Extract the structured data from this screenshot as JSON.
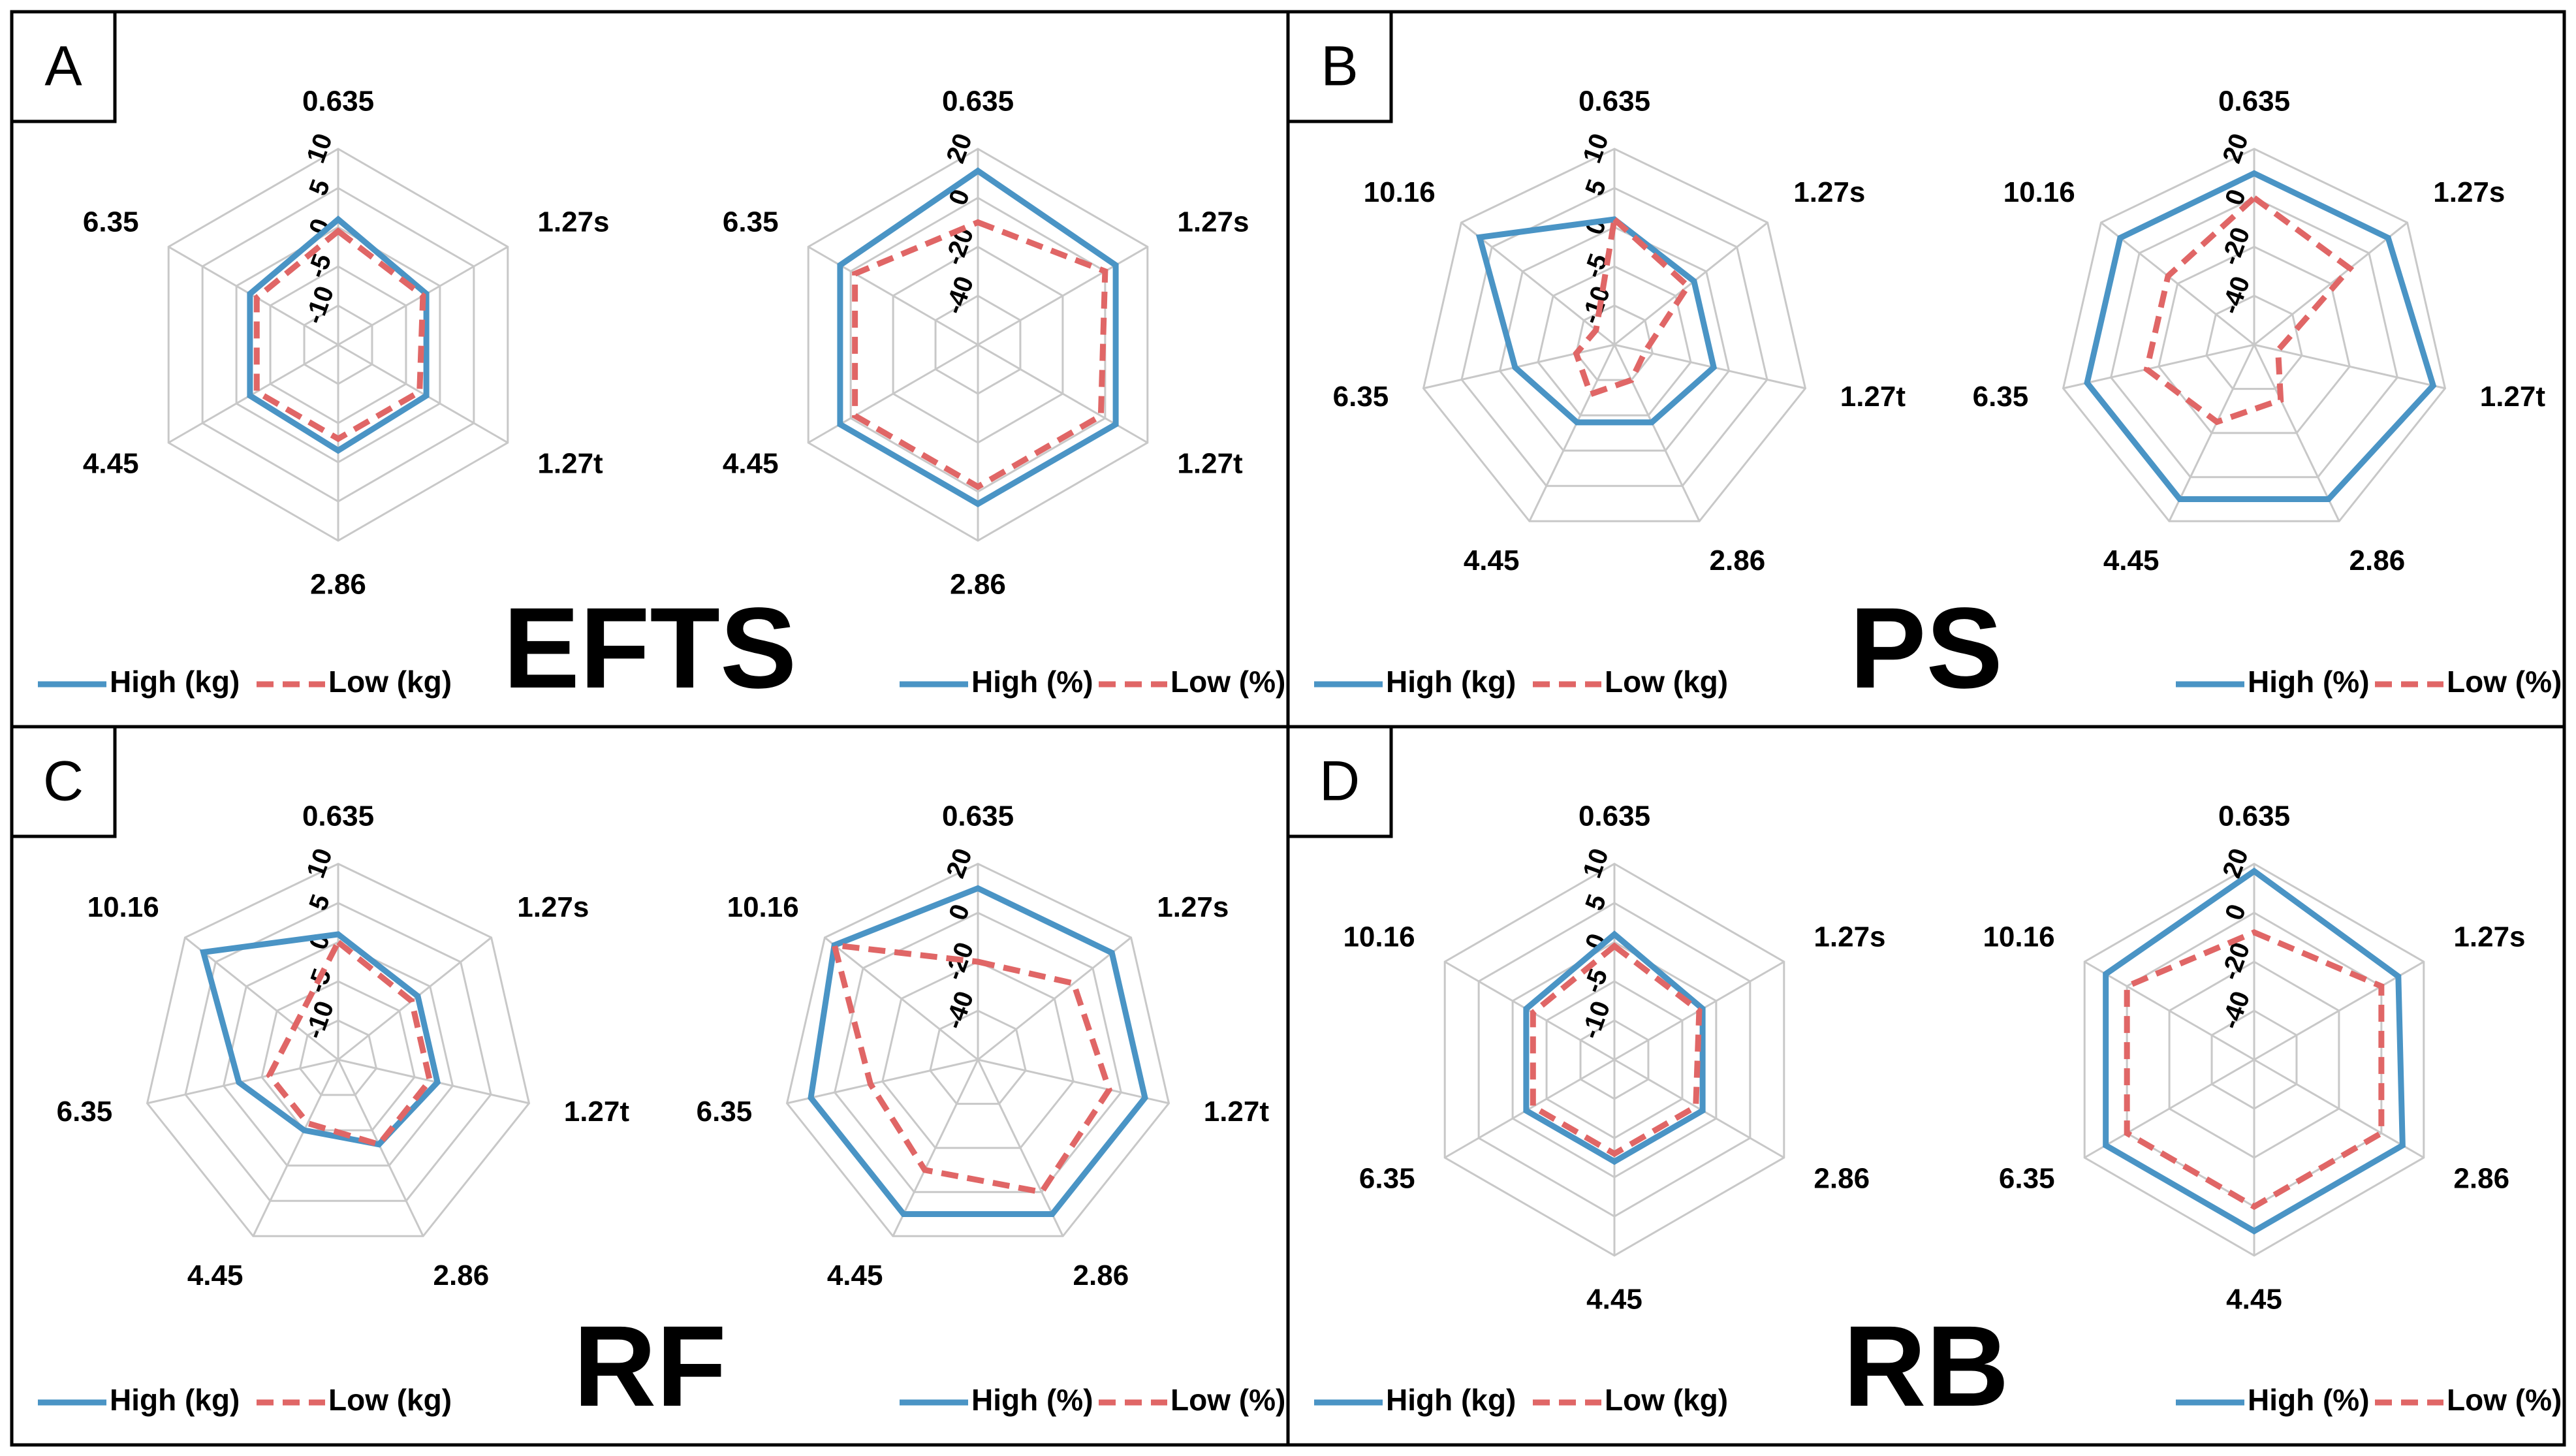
{
  "colors": {
    "high": "#4a94c5",
    "low": "#e06666",
    "grid": "#c8c8c8",
    "border": "#000000"
  },
  "chart_data": [
    {
      "panel": "A",
      "title": "EFTS",
      "type": "radar",
      "axes": [
        "0.635",
        "1.27s",
        "1.27t",
        "2.86",
        "4.45",
        "6.35"
      ],
      "charts": [
        {
          "ticks": [
            "10",
            "5",
            "0",
            "-5",
            "-10"
          ],
          "range": [
            -15,
            10
          ],
          "series": [
            {
              "name": "High (kg)",
              "values": [
                1,
                -2,
                -2,
                -1.5,
                -2,
                -2
              ]
            },
            {
              "name": "Low (kg)",
              "values": [
                -0.5,
                -2.5,
                -3,
                -3,
                -3,
                -3
              ]
            }
          ]
        },
        {
          "ticks": [
            "20",
            "0",
            "-20",
            "-40"
          ],
          "range": [
            -60,
            20
          ],
          "series": [
            {
              "name": "High (%)",
              "values": [
                11,
                5,
                5,
                5,
                5,
                5
              ]
            },
            {
              "name": "Low (%)",
              "values": [
                -10,
                0,
                -2,
                -2,
                -2,
                -2
              ]
            }
          ]
        }
      ]
    },
    {
      "panel": "B",
      "title": "PS",
      "type": "radar",
      "axes": [
        "0.635",
        "1.27s",
        "1.27t",
        "2.86",
        "4.45",
        "6.35",
        "10.16"
      ],
      "charts": [
        {
          "ticks": [
            "10",
            "5",
            "0",
            "-5",
            "-10"
          ],
          "range": [
            -15,
            10
          ],
          "series": [
            {
              "name": "High (kg)",
              "values": [
                1,
                -2,
                -2,
                -4,
                -4,
                -2,
                7
              ]
            },
            {
              "name": "Low (kg)",
              "values": [
                1,
                -3,
                -11,
                -10,
                -8,
                -10,
                -12
              ]
            }
          ]
        },
        {
          "ticks": [
            "20",
            "0",
            "-20",
            "-40"
          ],
          "range": [
            -60,
            20
          ],
          "series": [
            {
              "name": "High (%)",
              "values": [
                10,
                10,
                15,
                10,
                10,
                10,
                10
              ]
            },
            {
              "name": "Low (%)",
              "values": [
                0,
                -10,
                -50,
                -35,
                -25,
                -15,
                -15
              ]
            }
          ]
        }
      ]
    },
    {
      "panel": "C",
      "title": "RF",
      "type": "radar",
      "axes": [
        "0.635",
        "1.27s",
        "1.27t",
        "2.86",
        "4.45",
        "6.35",
        "10.16"
      ],
      "charts": [
        {
          "ticks": [
            "10",
            "5",
            "0",
            "-5",
            "-10"
          ],
          "range": [
            -15,
            10
          ],
          "series": [
            {
              "name": "High (kg)",
              "values": [
                1,
                -2,
                -2,
                -3,
                -5,
                -2,
                7
              ]
            },
            {
              "name": "Low (kg)",
              "values": [
                0,
                -3,
                -3,
                -3,
                -6,
                -6,
                -8
              ]
            }
          ]
        },
        {
          "ticks": [
            "20",
            "0",
            "-20",
            "-40"
          ],
          "range": [
            -60,
            20
          ],
          "series": [
            {
              "name": "High (%)",
              "values": [
                10,
                10,
                10,
                10,
                10,
                10,
                15
              ]
            },
            {
              "name": "Low (%)",
              "values": [
                -20,
                -10,
                -5,
                0,
                -10,
                -15,
                15
              ]
            }
          ]
        }
      ]
    },
    {
      "panel": "D",
      "title": "RB",
      "type": "radar",
      "axes": [
        "0.635",
        "1.27s",
        "2.86",
        "4.45",
        "6.35",
        "10.16"
      ],
      "charts": [
        {
          "ticks": [
            "10",
            "5",
            "0",
            "-5",
            "-10"
          ],
          "range": [
            -15,
            10
          ],
          "series": [
            {
              "name": "High (kg)",
              "values": [
                1,
                -2,
                -2,
                -2,
                -2,
                -2
              ]
            },
            {
              "name": "Low (kg)",
              "values": [
                -0.5,
                -2.5,
                -3,
                -3,
                -3,
                -3
              ]
            }
          ]
        },
        {
          "ticks": [
            "20",
            "0",
            "-20",
            "-40"
          ],
          "range": [
            -60,
            20
          ],
          "series": [
            {
              "name": "High (%)",
              "values": [
                17,
                8,
                10,
                10,
                10,
                10
              ]
            },
            {
              "name": "Low (%)",
              "values": [
                -8,
                0,
                0,
                0,
                0,
                0
              ]
            }
          ]
        }
      ]
    }
  ]
}
